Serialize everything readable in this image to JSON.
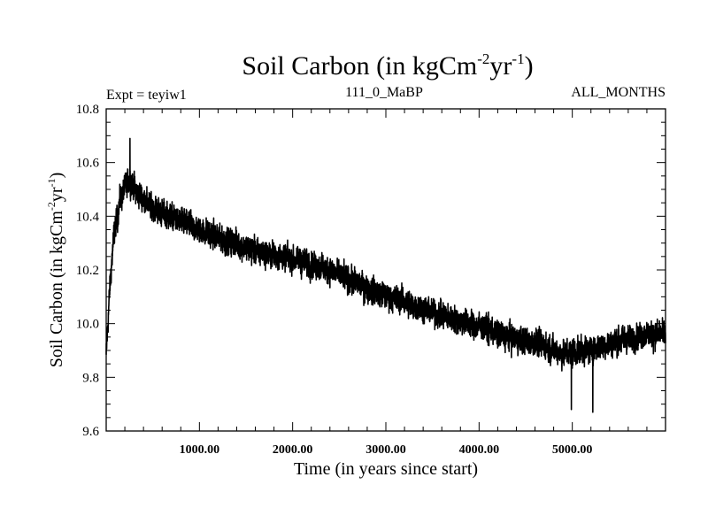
{
  "chart_data": {
    "type": "line",
    "title": {
      "main": "Soil Carbon (in kgCm",
      "sup1": "-2",
      "mid": "yr",
      "sup2": "-1",
      "close": ")"
    },
    "subtitle_left": "Expt = teyiw1",
    "subtitle_center": "111_0_MaBP",
    "subtitle_right": "ALL_MONTHS",
    "xlabel": "Time (in years since start)",
    "ylabel": {
      "main": "Soil Carbon (in kgCm",
      "sup1": "-2",
      "mid": "yr",
      "sup2": "-1",
      "close": ")"
    },
    "xlim": [
      0,
      6000
    ],
    "ylim": [
      9.6,
      10.8
    ],
    "x_ticks": [
      {
        "value": 1000,
        "label": "1000.00"
      },
      {
        "value": 2000,
        "label": "2000.00"
      },
      {
        "value": 3000,
        "label": "3000.00"
      },
      {
        "value": 4000,
        "label": "4000.00"
      },
      {
        "value": 5000,
        "label": "5000.00"
      }
    ],
    "x_minor_step": 200,
    "y_ticks": [
      {
        "value": 9.6,
        "label": "9.6"
      },
      {
        "value": 9.8,
        "label": "9.8"
      },
      {
        "value": 10.0,
        "label": "10.0"
      },
      {
        "value": 10.2,
        "label": "10.2"
      },
      {
        "value": 10.4,
        "label": "10.4"
      },
      {
        "value": 10.6,
        "label": "10.6"
      },
      {
        "value": 10.8,
        "label": "10.8"
      }
    ],
    "y_minor_step": 0.05,
    "series": [
      {
        "name": "Soil Carbon",
        "color": "#000000",
        "note": "annual values; smooth trend with year-to-year noise amplitude ~0.06",
        "trend_x": [
          0,
          15,
          40,
          80,
          150,
          200,
          260,
          330,
          500,
          800,
          1200,
          1600,
          2000,
          2400,
          2800,
          3200,
          3600,
          4000,
          4300,
          4600,
          4900,
          5150,
          5350,
          5550,
          5800,
          6000
        ],
        "trend_y": [
          9.88,
          9.98,
          10.14,
          10.32,
          10.46,
          10.51,
          10.53,
          10.49,
          10.43,
          10.38,
          10.32,
          10.27,
          10.24,
          10.2,
          10.13,
          10.08,
          10.03,
          9.99,
          9.95,
          9.93,
          9.89,
          9.9,
          9.92,
          9.94,
          9.96,
          9.96
        ],
        "noise_amplitude": 0.06,
        "extremes": [
          {
            "x": 255,
            "y": 10.69
          },
          {
            "x": 5220,
            "y": 9.67
          },
          {
            "x": 4990,
            "y": 9.68
          }
        ]
      }
    ]
  }
}
